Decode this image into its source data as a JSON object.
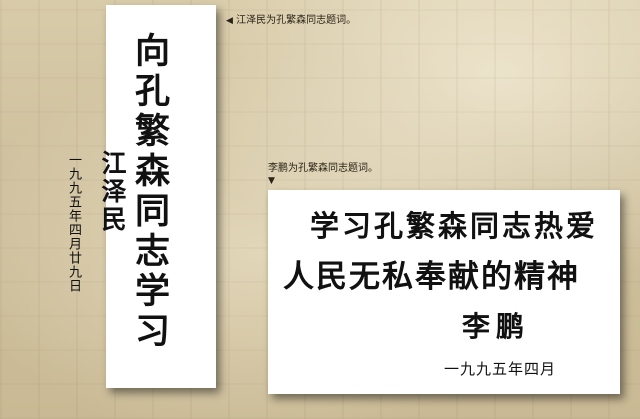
{
  "captions": {
    "left": "江泽民为孔繁森同志题词。",
    "right": "李鹏为孔繁森同志题词。",
    "left_marker": "◀",
    "right_marker": "▼"
  },
  "left_inscription": {
    "main_text": "向孔繁森同志学习",
    "signature": "江泽民",
    "date": "一九九五年四月廿九日"
  },
  "right_inscription": {
    "line1": "学习孔繁森同志热爱",
    "line2": "人民无私奉献的精神",
    "signature": "李鹏",
    "date": "一九九五年四月"
  },
  "colors": {
    "background": "#cdbe9b",
    "paper": "#ffffff",
    "ink": "#111111"
  }
}
